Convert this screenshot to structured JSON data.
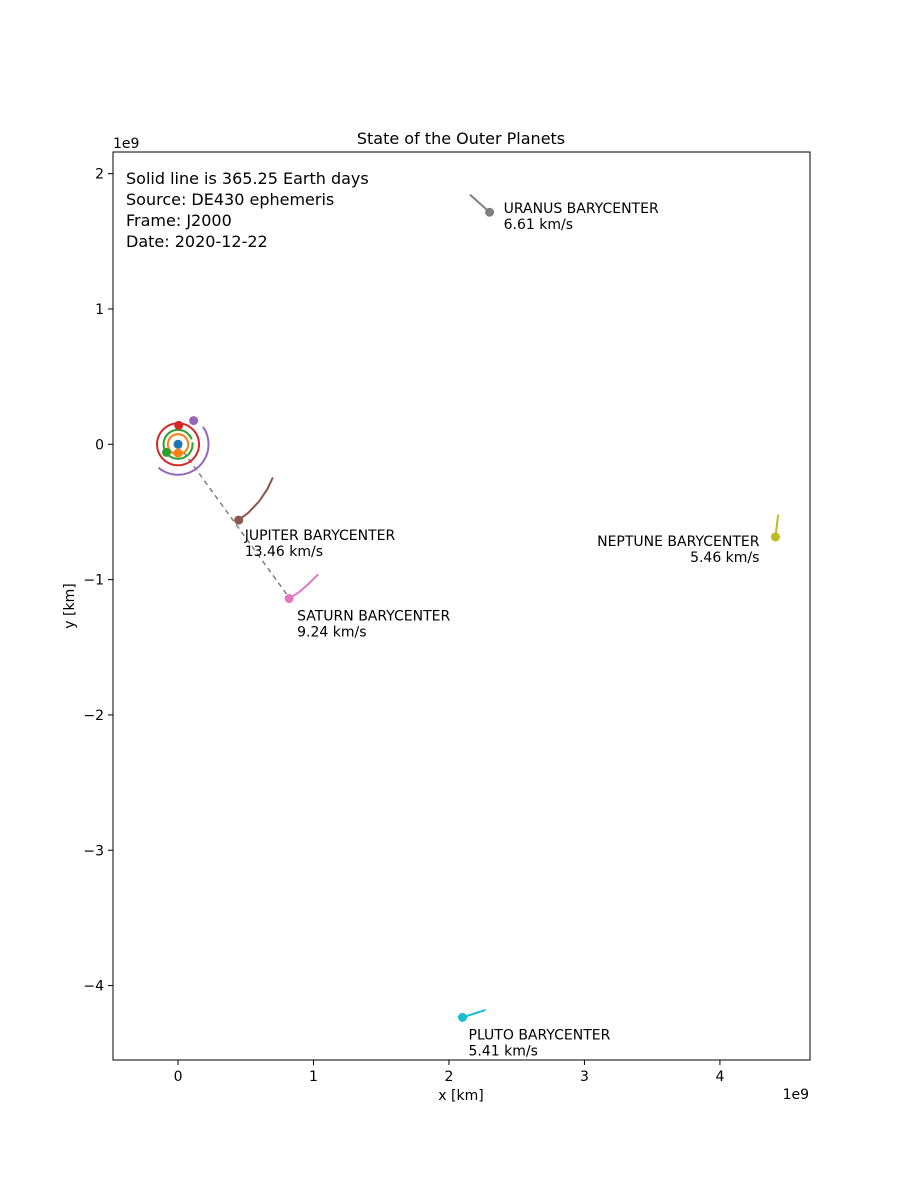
{
  "chart_data": {
    "type": "scatter",
    "title": "State of the Outer Planets",
    "xlabel": "x [km]",
    "ylabel": "y [km]",
    "x_offset_label": "1e9",
    "y_offset_label": "1e9",
    "xlim": [
      -0.48,
      4.665
    ],
    "ylim": [
      -4.55,
      2.16
    ],
    "scale": 1000000000,
    "xticks": [
      0,
      1,
      2,
      3,
      4
    ],
    "yticks": [
      2,
      1,
      0,
      -1,
      -2,
      -3,
      -4
    ],
    "xtick_labels": [
      "0",
      "1",
      "2",
      "3",
      "4"
    ],
    "ytick_labels": [
      "2",
      "1",
      "0",
      "−1",
      "−2",
      "−3",
      "−4"
    ],
    "grid": false,
    "info_lines": [
      "Solid line is 365.25 Earth days",
      "Source: DE430 ephemeris",
      "Frame: J2000",
      "Date: 2020-12-22"
    ],
    "inner_orbits": [
      {
        "name_color": "#1f77b4",
        "radius": 0.0,
        "position": [
          0.0,
          0.0
        ],
        "arc": [
          0,
          360
        ]
      },
      {
        "name_color": "#ff7f0e",
        "radius": 0.075,
        "position": [
          0.0,
          -0.065
        ],
        "arc": [
          -30,
          330
        ]
      },
      {
        "name_color": "#2ca02c",
        "radius": 0.107,
        "position": [
          -0.085,
          -0.06
        ],
        "arc": [
          20,
          370
        ]
      },
      {
        "name_color": "#d62728",
        "radius": 0.155,
        "position": [
          0.005,
          0.14
        ],
        "arc": [
          80,
          440
        ]
      },
      {
        "name_color": "#9467bd",
        "radius": 0.225,
        "position": [
          0.115,
          0.175
        ],
        "arc": [
          -130,
          35
        ]
      }
    ],
    "series": [
      {
        "name": "JUPITER BARYCENTER",
        "speed": "13.46 km/s",
        "color": "#8c564b",
        "position": [
          0.448,
          -0.56
        ],
        "track": [
          [
            0.448,
            -0.56
          ],
          [
            0.52,
            -0.505
          ],
          [
            0.6,
            -0.42
          ],
          [
            0.66,
            -0.33
          ],
          [
            0.7,
            -0.245
          ]
        ],
        "label_anchor": "start",
        "label_offset": [
          6,
          20
        ]
      },
      {
        "name": "SATURN BARYCENTER",
        "speed": "9.24 km/s",
        "color": "#e377c2",
        "position": [
          0.82,
          -1.14
        ],
        "track": [
          [
            0.82,
            -1.14
          ],
          [
            0.89,
            -1.095
          ],
          [
            0.96,
            -1.035
          ],
          [
            1.035,
            -0.96
          ]
        ],
        "label_anchor": "start",
        "label_offset": [
          8,
          22
        ]
      },
      {
        "name": "URANUS BARYCENTER",
        "speed": "6.61 km/s",
        "color": "#7f7f7f",
        "position": [
          2.3,
          1.715
        ],
        "track": [
          [
            2.3,
            1.715
          ],
          [
            2.155,
            1.845
          ]
        ],
        "label_anchor": "start",
        "label_offset": [
          14,
          1
        ]
      },
      {
        "name": "NEPTUNE BARYCENTER",
        "speed": "5.46 km/s",
        "color": "#bcbd22",
        "position": [
          4.41,
          -0.685
        ],
        "track": [
          [
            4.41,
            -0.685
          ],
          [
            4.43,
            -0.52
          ]
        ],
        "label_anchor": "end",
        "label_offset": [
          -16,
          9
        ]
      },
      {
        "name": "PLUTO BARYCENTER",
        "speed": "5.41 km/s",
        "color": "#17becf",
        "position": [
          2.1,
          -4.235
        ],
        "track": [
          [
            2.1,
            -4.235
          ],
          [
            2.27,
            -4.18
          ]
        ],
        "label_anchor": "start",
        "label_offset": [
          6,
          22
        ]
      }
    ],
    "dashed_line": [
      [
        0.0,
        0.0
      ],
      [
        0.825,
        -1.14
      ]
    ]
  }
}
